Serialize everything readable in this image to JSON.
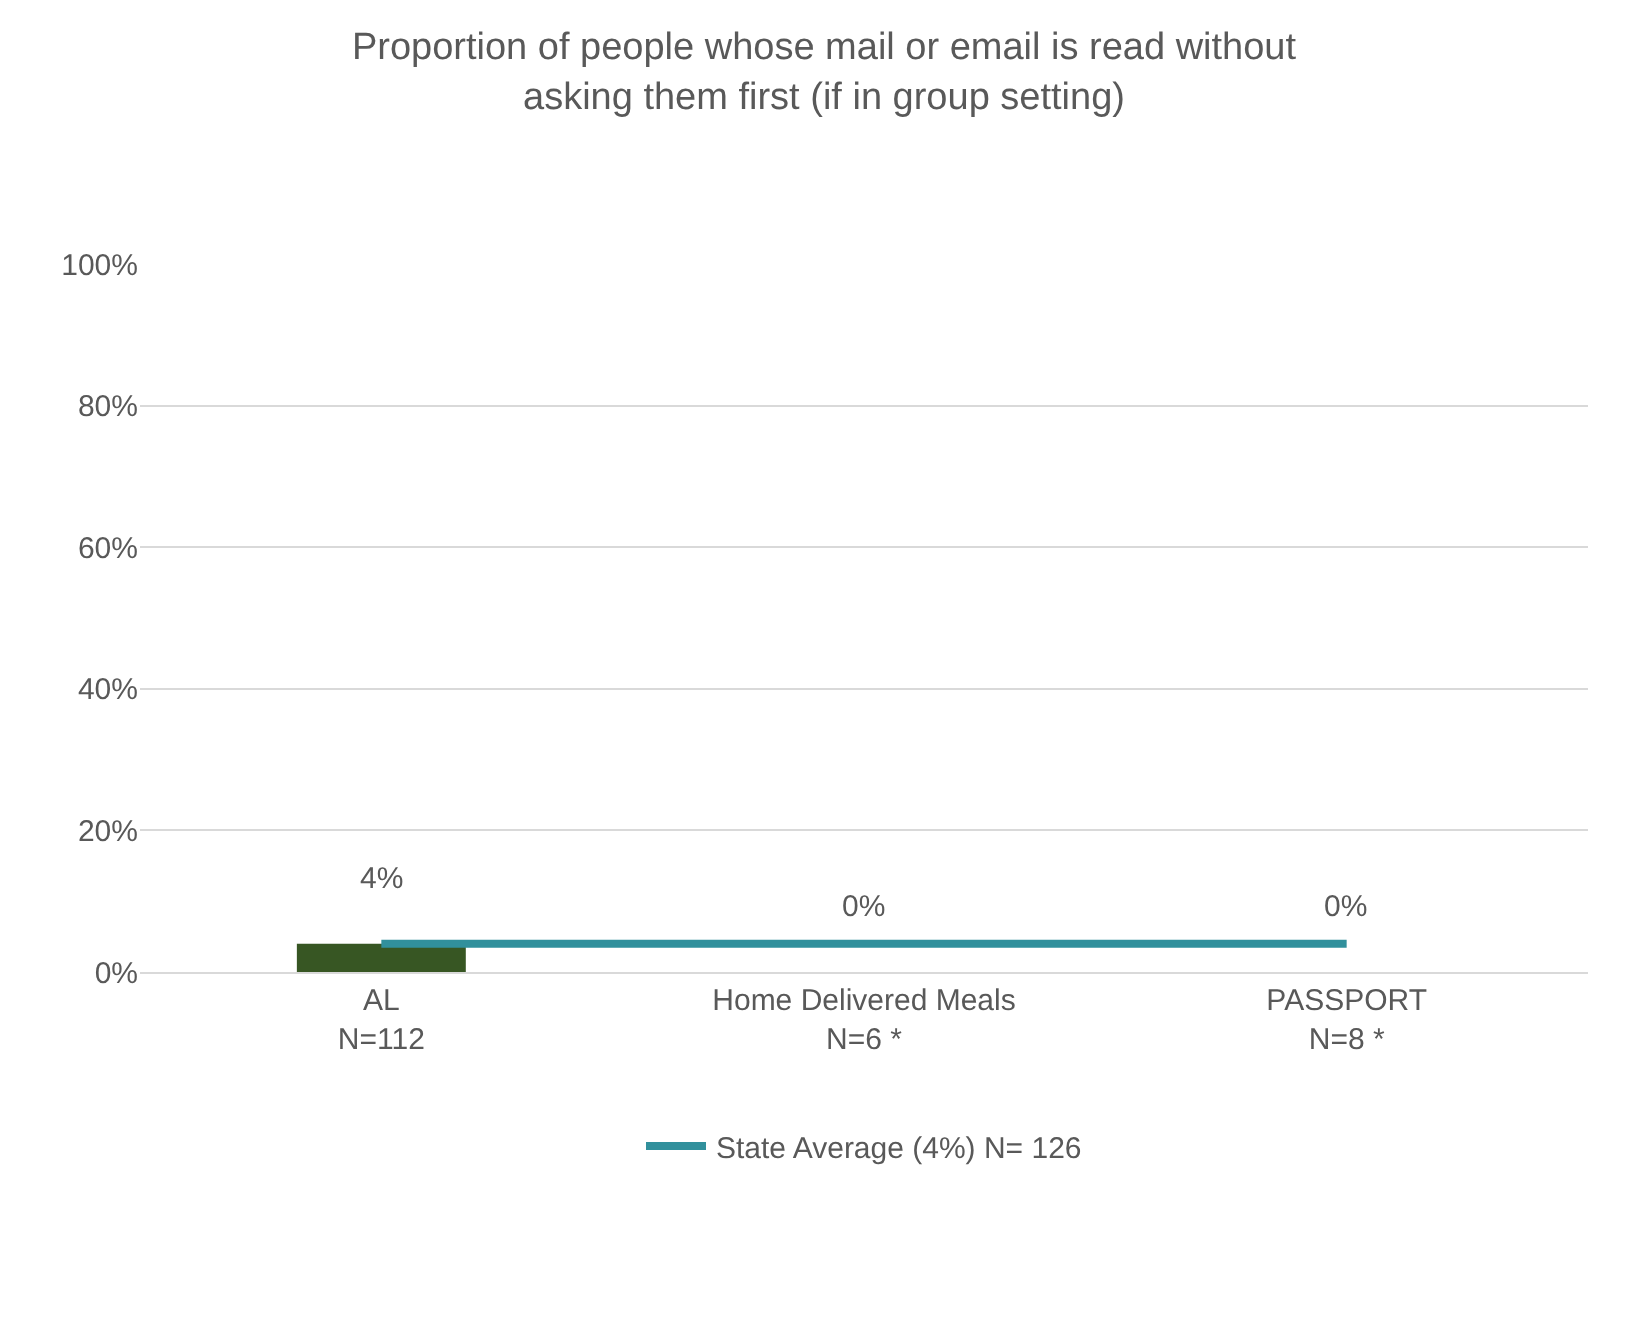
{
  "chart_data": {
    "type": "bar",
    "title": "Proportion of people whose mail or email is read without\nasking them first (if in group setting)",
    "categories": [
      "AL\nN=112",
      "Home Delivered Meals\nN=6 *",
      "PASSPORT\nN=8 *"
    ],
    "series": [
      {
        "color": "#375623",
        "values": [
          4,
          0,
          0
        ],
        "value_labels": [
          "4%",
          "0%",
          "0%"
        ]
      },
      {
        "type": "line",
        "name": "State Average (4%) N= 126",
        "color": "#31909c",
        "values": [
          4,
          4,
          4
        ]
      }
    ],
    "ylim": [
      0,
      100
    ],
    "yticks": [
      {
        "value": 0,
        "label": "0%"
      },
      {
        "value": 20,
        "label": "20%"
      },
      {
        "value": 40,
        "label": "40%"
      },
      {
        "value": 60,
        "label": "60%"
      },
      {
        "value": 80,
        "label": "80%"
      },
      {
        "value": 100,
        "label": "100%"
      }
    ],
    "grid": "y",
    "legend": "bottom",
    "marker": "none"
  }
}
